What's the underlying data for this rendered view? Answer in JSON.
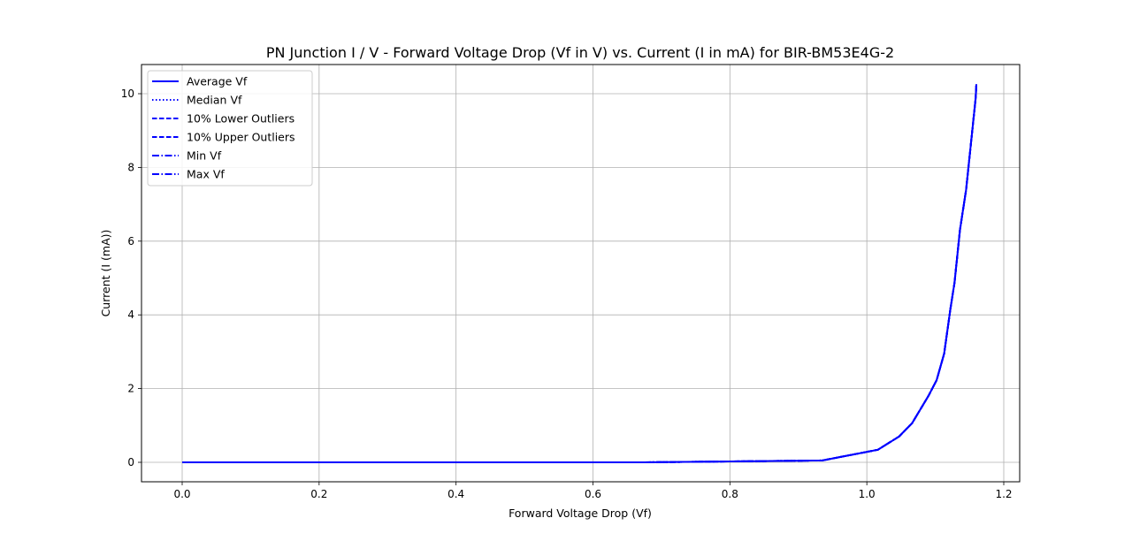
{
  "chart_data": {
    "type": "line",
    "title": "PN Junction I / V - Forward Voltage Drop (Vf in V) vs. Current (I in mA) for BIR-BM53E4G-2",
    "xlabel": "Forward Voltage Drop (Vf)",
    "ylabel": "Current (I (mA))",
    "xlim": [
      -0.075,
      1.225
    ],
    "ylim": [
      -0.52,
      10.8
    ],
    "xticks": [
      0.0,
      0.2,
      0.4,
      0.6,
      0.8,
      1.0,
      1.2
    ],
    "xtick_labels": [
      "0.0",
      "0.2",
      "0.4",
      "0.6",
      "0.8",
      "1.0",
      "1.2"
    ],
    "yticks": [
      0,
      2,
      4,
      6,
      8,
      10
    ],
    "ytick_labels": [
      "0",
      "2",
      "4",
      "6",
      "8",
      "10"
    ],
    "grid": true,
    "legend_position": "upper left",
    "x": [
      0.0,
      0.676,
      0.935,
      1.016,
      1.047,
      1.066,
      1.09,
      1.102,
      1.113,
      1.122,
      1.128,
      1.136,
      1.145,
      1.151,
      1.159,
      1.16
    ],
    "series": [
      {
        "name": "Average Vf",
        "style": "solid",
        "color": "#0000ff",
        "values": [
          0,
          0,
          0.05,
          0.34,
          0.7,
          1.06,
          1.8,
          2.23,
          2.95,
          4.15,
          4.87,
          6.31,
          7.39,
          8.47,
          9.9,
          10.26
        ]
      },
      {
        "name": "Median Vf",
        "style": "dotted",
        "color": "#0000ff",
        "values": [
          0,
          0,
          0.05,
          0.34,
          0.7,
          1.06,
          1.8,
          2.23,
          2.95,
          4.15,
          4.87,
          6.31,
          7.39,
          8.47,
          9.9,
          10.26
        ]
      },
      {
        "name": "10% Lower Outliers",
        "style": "dashed",
        "color": "#0000ff",
        "values": [
          0,
          0,
          0.05,
          0.34,
          0.7,
          1.06,
          1.8,
          2.23,
          2.95,
          4.15,
          4.87,
          6.31,
          7.39,
          8.47,
          9.9,
          10.26
        ]
      },
      {
        "name": "10% Upper Outliers",
        "style": "dashed",
        "color": "#0000ff",
        "values": [
          0,
          0,
          0.05,
          0.34,
          0.7,
          1.06,
          1.8,
          2.23,
          2.95,
          4.15,
          4.87,
          6.31,
          7.39,
          8.47,
          9.9,
          10.26
        ]
      },
      {
        "name": "Min Vf",
        "style": "dashdot",
        "color": "#0000ff",
        "values": [
          0,
          0,
          0.05,
          0.34,
          0.7,
          1.06,
          1.8,
          2.23,
          2.95,
          4.15,
          4.87,
          6.31,
          7.39,
          8.47,
          9.9,
          10.26
        ]
      },
      {
        "name": "Max Vf",
        "style": "dashdot",
        "color": "#0000ff",
        "values": [
          0,
          0,
          0.05,
          0.34,
          0.7,
          1.06,
          1.8,
          2.23,
          2.95,
          4.15,
          4.87,
          6.31,
          7.39,
          8.47,
          9.9,
          10.26
        ]
      }
    ]
  },
  "colors": {
    "line": "#0000ff",
    "grid": "#b0b0b0",
    "axes": "#000000",
    "legend_border": "#cccccc"
  }
}
